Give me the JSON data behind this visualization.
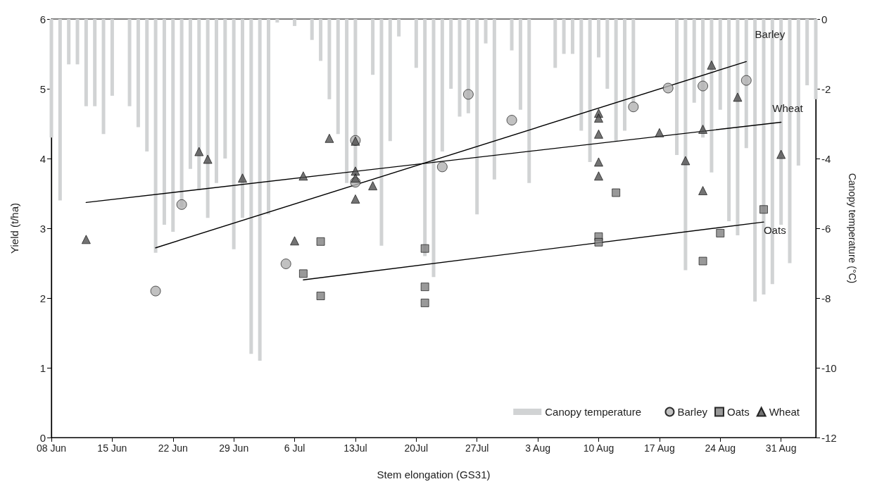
{
  "chart_data": {
    "type": "scatter",
    "xlabel": "Stem elongation (GS31)",
    "ylabel": "Yield (t/ha)",
    "y2label": "Canopy temperature (°C)",
    "xlim": [
      "--06-08",
      "--09-04"
    ],
    "xticks": [
      {
        "value": "--06-08",
        "label": "08 Jun"
      },
      {
        "value": "--06-15",
        "label": "15 Jun"
      },
      {
        "value": "--06-22",
        "label": "22 Jun"
      },
      {
        "value": "--06-29",
        "label": "29 Jun"
      },
      {
        "value": "--07-06",
        "label": "6 Jul"
      },
      {
        "value": "--07-13",
        "label": "13Jul"
      },
      {
        "value": "--07-20",
        "label": "20Jul"
      },
      {
        "value": "--07-27",
        "label": "27Jul"
      },
      {
        "value": "--08-03",
        "label": "3 Aug"
      },
      {
        "value": "--08-10",
        "label": "10 Aug"
      },
      {
        "value": "--08-17",
        "label": "17 Aug"
      },
      {
        "value": "--08-24",
        "label": "24 Aug"
      },
      {
        "value": "--08-31",
        "label": "31 Aug"
      }
    ],
    "ylim": [
      0,
      6
    ],
    "yticks": [
      0,
      1,
      2,
      3,
      4,
      5,
      6
    ],
    "y2lim": [
      -12,
      0
    ],
    "y2ticks": [
      -12,
      -10,
      -8,
      -6,
      -4,
      -2,
      0
    ],
    "grid": false,
    "legend": "bottom right",
    "series": [
      {
        "name": "Canopy temperature",
        "type": "bar",
        "axis": "y2",
        "color": "#d1d3d4",
        "x": [
          "--06-08",
          "--06-09",
          "--06-10",
          "--06-11",
          "--06-12",
          "--06-13",
          "--06-14",
          "--06-15",
          "--06-16",
          "--06-17",
          "--06-18",
          "--06-19",
          "--06-20",
          "--06-21",
          "--06-22",
          "--06-23",
          "--06-24",
          "--06-25",
          "--06-26",
          "--06-27",
          "--06-28",
          "--06-29",
          "--06-30",
          "--07-01",
          "--07-02",
          "--07-03",
          "--07-04",
          "--07-05",
          "--07-06",
          "--07-07",
          "--07-08",
          "--07-09",
          "--07-10",
          "--07-11",
          "--07-12",
          "--07-13",
          "--07-14",
          "--07-15",
          "--07-16",
          "--07-17",
          "--07-18",
          "--07-19",
          "--07-20",
          "--07-21",
          "--07-22",
          "--07-23",
          "--07-24",
          "--07-25",
          "--07-26",
          "--07-27",
          "--07-28",
          "--07-29",
          "--07-30",
          "--07-31",
          "--08-01",
          "--08-02",
          "--08-03",
          "--08-04",
          "--08-05",
          "--08-06",
          "--08-07",
          "--08-08",
          "--08-09",
          "--08-10",
          "--08-11",
          "--08-12",
          "--08-13",
          "--08-14",
          "--08-15",
          "--08-16",
          "--08-17",
          "--08-18",
          "--08-19",
          "--08-20",
          "--08-21",
          "--08-22",
          "--08-23",
          "--08-24",
          "--08-25",
          "--08-26",
          "--08-27",
          "--08-28",
          "--08-29",
          "--08-30",
          "--08-31",
          "--09-01",
          "--09-02",
          "--09-03",
          "--09-04"
        ],
        "values": [
          -3.4,
          -5.2,
          -1.3,
          -1.3,
          -2.5,
          -2.5,
          -3.3,
          -2.2,
          null,
          -2.5,
          -3.1,
          -3.8,
          -6.7,
          -5.9,
          -6.1,
          -5.4,
          -4.3,
          -4.9,
          -5.7,
          -4.7,
          -4.0,
          -6.6,
          -5.7,
          -9.6,
          -9.8,
          -5.6,
          -0.1,
          null,
          -0.2,
          null,
          -0.6,
          -1.2,
          -2.3,
          -3.3,
          -4.7,
          -4.5,
          null,
          -1.6,
          -6.5,
          -3.5,
          -0.5,
          null,
          -1.4,
          -6.8,
          -7.4,
          -3.8,
          -2.0,
          -2.8,
          -2.7,
          -5.6,
          -0.7,
          -4.6,
          null,
          -0.9,
          -2.6,
          -4.7,
          null,
          null,
          -1.4,
          -1.0,
          -1.0,
          -3.2,
          -4.1,
          -1.1,
          -2.0,
          -3.5,
          -3.2,
          -2.4,
          null,
          null,
          null,
          null,
          -3.9,
          -7.2,
          -2.4,
          -3.4,
          -4.4,
          -2.6,
          -5.8,
          -6.2,
          -3.7,
          -8.1,
          -7.9,
          -7.6,
          -5.9,
          -7.0,
          -4.2,
          -1.9,
          -2.3
        ]
      },
      {
        "name": "Barley",
        "marker": "circle",
        "color": "#b1b1b1",
        "x": [
          "--06-20",
          "--06-23",
          "--07-05",
          "--07-13",
          "--07-13",
          "--07-23",
          "--07-26",
          "--07-31",
          "--08-14",
          "--08-18",
          "--08-22",
          "--08-27"
        ],
        "values": [
          2.1,
          3.34,
          2.49,
          4.26,
          3.66,
          3.88,
          4.92,
          4.55,
          4.74,
          5.01,
          5.04,
          5.12
        ]
      },
      {
        "name": "Oats",
        "marker": "square",
        "color": "#7f7f7f",
        "x": [
          "--07-07",
          "--07-09",
          "--07-09",
          "--07-21",
          "--07-21",
          "--07-21",
          "--08-10",
          "--08-10",
          "--08-12",
          "--08-22",
          "--08-24",
          "--08-29"
        ],
        "values": [
          2.35,
          2.81,
          2.03,
          2.71,
          2.16,
          1.93,
          2.88,
          2.8,
          3.51,
          2.53,
          2.93,
          3.27
        ]
      },
      {
        "name": "Wheat",
        "marker": "triangle",
        "color": "#505050",
        "x": [
          "--06-12",
          "--06-25",
          "--06-26",
          "--06-30",
          "--07-06",
          "--07-07",
          "--07-10",
          "--07-13",
          "--07-13",
          "--07-13",
          "--07-13",
          "--07-15",
          "--08-10",
          "--08-10",
          "--08-10",
          "--08-10",
          "--08-10",
          "--08-17",
          "--08-20",
          "--08-22",
          "--08-22",
          "--08-23",
          "--08-26",
          "--08-31"
        ],
        "values": [
          2.84,
          4.1,
          3.99,
          3.72,
          2.82,
          3.75,
          4.29,
          4.25,
          3.82,
          3.72,
          3.42,
          3.61,
          4.65,
          4.58,
          4.35,
          3.95,
          3.75,
          4.37,
          3.97,
          4.42,
          3.54,
          5.34,
          4.88,
          4.06
        ]
      },
      {
        "type": "line",
        "marker": "none",
        "color": "#000000",
        "x": [
          "--06-20",
          "--08-27"
        ],
        "values": [
          2.72,
          5.39
        ]
      },
      {
        "type": "line",
        "marker": "none",
        "color": "#000000",
        "x": [
          "--06-12",
          "--08-31"
        ],
        "values": [
          3.37,
          4.52
        ]
      },
      {
        "type": "line",
        "marker": "none",
        "color": "#000000",
        "x": [
          "--07-07",
          "--08-29"
        ],
        "values": [
          2.26,
          3.09
        ]
      }
    ],
    "annotations": [
      {
        "text": "Barley",
        "x": "--08-28",
        "y": 5.78
      },
      {
        "text": "Wheat",
        "x": "--08-30",
        "y": 4.72
      },
      {
        "text": "Oats",
        "x": "--08-29",
        "y": 2.97
      }
    ]
  }
}
